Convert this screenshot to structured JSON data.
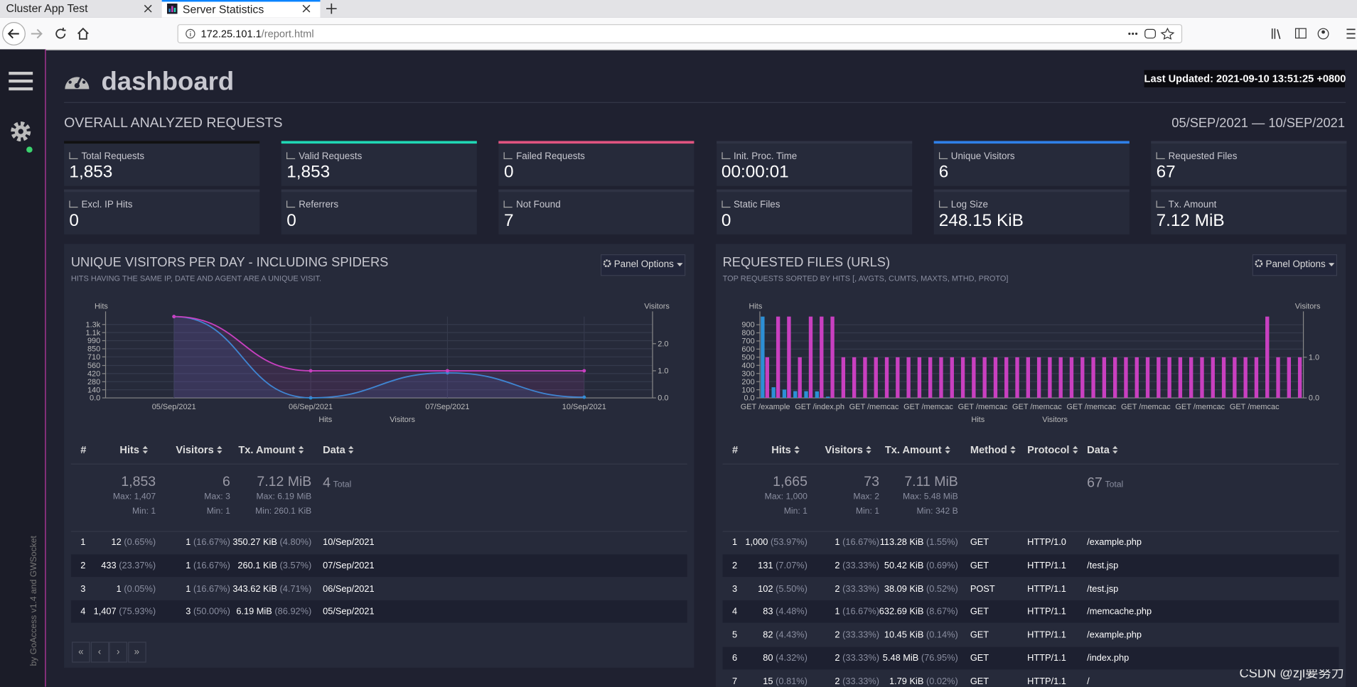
{
  "browser": {
    "tabs": [
      "Cluster App Test",
      "Server Statistics"
    ],
    "url_host": "172.25.101.1",
    "url_path": "/report.html"
  },
  "credit": "by GoAccess v1.4 and GWSocket",
  "header": {
    "title": "dashboard",
    "last_updated": "Last Updated: 2021-09-10 13:51:25 +0800"
  },
  "overall": {
    "title": "OVERALL ANALYZED REQUESTS",
    "date_range": "05/SEP/2021 — 10/SEP/2021",
    "metrics": [
      {
        "label": "Total Requests",
        "value": "1,853",
        "color": "#111111"
      },
      {
        "label": "Valid Requests",
        "value": "1,853",
        "color": "#20d7b4"
      },
      {
        "label": "Failed Requests",
        "value": "0",
        "color": "#e05480"
      },
      {
        "label": "Init. Proc. Time",
        "value": "00:00:01"
      },
      {
        "label": "Unique Visitors",
        "value": "6",
        "color": "#2f80e8"
      },
      {
        "label": "Requested Files",
        "value": "67"
      },
      {
        "label": "Excl. IP Hits",
        "value": "0"
      },
      {
        "label": "Referrers",
        "value": "0"
      },
      {
        "label": "Not Found",
        "value": "7"
      },
      {
        "label": "Static Files",
        "value": "0"
      },
      {
        "label": "Log Size",
        "value": "248.15 KiB"
      },
      {
        "label": "Tx. Amount",
        "value": "7.12 MiB"
      }
    ]
  },
  "panels": [
    {
      "title": "UNIQUE VISITORS PER DAY - INCLUDING SPIDERS",
      "subtitle": "HITS HAVING THE SAME IP, DATE AND AGENT ARE A UNIQUE VISIT.",
      "options": "Panel Options",
      "table": {
        "columns": [
          "#",
          "Hits",
          "Visitors",
          "Tx. Amount",
          "Data"
        ],
        "summary": {
          "hits": [
            "1,853",
            "Max: 1,407",
            "Min: 1"
          ],
          "visitors": [
            "6",
            "Max: 3",
            "Min: 1"
          ],
          "tx": [
            "7.12 MiB",
            "Max: 6.19 MiB",
            "Min: 260.1 KiB"
          ],
          "data": [
            "4",
            "Total"
          ]
        },
        "rows": [
          [
            "1",
            [
              "12",
              "(0.65%)"
            ],
            [
              "1",
              "(16.67%)"
            ],
            [
              "350.27 KiB",
              "(4.80%)"
            ],
            "10/Sep/2021"
          ],
          [
            "2",
            [
              "433",
              "(23.37%)"
            ],
            [
              "1",
              "(16.67%)"
            ],
            [
              "260.1 KiB",
              "(3.57%)"
            ],
            "07/Sep/2021"
          ],
          [
            "3",
            [
              "1",
              "(0.05%)"
            ],
            [
              "1",
              "(16.67%)"
            ],
            [
              "343.62 KiB",
              "(4.71%)"
            ],
            "06/Sep/2021"
          ],
          [
            "4",
            [
              "1,407",
              "(75.93%)"
            ],
            [
              "3",
              "(50.00%)"
            ],
            [
              "6.19 MiB",
              "(86.92%)"
            ],
            "05/Sep/2021"
          ]
        ]
      },
      "pager": [
        "«",
        "‹",
        "›",
        "»"
      ]
    },
    {
      "title": "REQUESTED FILES (URLS)",
      "subtitle": "TOP REQUESTS SORTED BY HITS [, AVGTS, CUMTS, MAXTS, MTHD, PROTO]",
      "options": "Panel Options",
      "table": {
        "columns": [
          "#",
          "Hits",
          "Visitors",
          "Tx. Amount",
          "Method",
          "Protocol",
          "Data"
        ],
        "summary": {
          "hits": [
            "1,665",
            "Max: 1,000",
            "Min: 1"
          ],
          "visitors": [
            "73",
            "Max: 2",
            "Min: 1"
          ],
          "tx": [
            "7.11 MiB",
            "Max: 5.48 MiB",
            "Min: 342 B"
          ],
          "data": [
            "67",
            "Total"
          ]
        },
        "rows": [
          [
            "1",
            [
              "1,000",
              "(53.97%)"
            ],
            [
              "1",
              "(16.67%)"
            ],
            [
              "113.28 KiB",
              "(1.55%)"
            ],
            "GET",
            "HTTP/1.0",
            "/example.php"
          ],
          [
            "2",
            [
              "131",
              "(7.07%)"
            ],
            [
              "2",
              "(33.33%)"
            ],
            [
              "50.42 KiB",
              "(0.69%)"
            ],
            "GET",
            "HTTP/1.1",
            "/test.jsp"
          ],
          [
            "3",
            [
              "102",
              "(5.50%)"
            ],
            [
              "2",
              "(33.33%)"
            ],
            [
              "38.09 KiB",
              "(0.52%)"
            ],
            "POST",
            "HTTP/1.1",
            "/test.jsp"
          ],
          [
            "4",
            [
              "83",
              "(4.48%)"
            ],
            [
              "1",
              "(16.67%)"
            ],
            [
              "632.69 KiB",
              "(8.67%)"
            ],
            "GET",
            "HTTP/1.1",
            "/memcache.php"
          ],
          [
            "5",
            [
              "82",
              "(4.43%)"
            ],
            [
              "2",
              "(33.33%)"
            ],
            [
              "10.45 KiB",
              "(0.14%)"
            ],
            "GET",
            "HTTP/1.1",
            "/example.php"
          ],
          [
            "6",
            [
              "80",
              "(4.32%)"
            ],
            [
              "2",
              "(33.33%)"
            ],
            [
              "5.48 MiB",
              "(76.95%)"
            ],
            "GET",
            "HTTP/1.1",
            "/index.php"
          ],
          [
            "7",
            [
              "15",
              "(0.81%)"
            ],
            [
              "2",
              "(33.33%)"
            ],
            [
              "1.79 KiB",
              "(0.02%)"
            ],
            "GET",
            "HTTP/1.1",
            "/"
          ]
        ]
      }
    }
  ],
  "chart_data": [
    {
      "type": "line",
      "y_label": "Hits",
      "y2_label": "Visitors",
      "categories": [
        "05/Sep/2021",
        "06/Sep/2021",
        "07/Sep/2021",
        "10/Sep/2021"
      ],
      "series": [
        {
          "name": "Hits",
          "color": "#2d8fd5",
          "values": [
            1407,
            1,
            433,
            12
          ]
        },
        {
          "name": "Visitors",
          "color": "#c840c0",
          "axis": "y2",
          "values": [
            3,
            1,
            1,
            1
          ]
        }
      ],
      "ylim": [
        0,
        1407
      ],
      "yticks": [
        {
          "value": 0,
          "label": "0.0"
        },
        140,
        280,
        420,
        560,
        710,
        850,
        990,
        {
          "value": 1130,
          "label": "1.1k"
        },
        {
          "value": 1270,
          "label": "1.3k"
        }
      ],
      "y2lim": [
        0,
        3
      ],
      "y2ticks": [
        {
          "value": 0,
          "label": "0.0"
        },
        {
          "value": 1,
          "label": "1.0"
        },
        {
          "value": 2,
          "label": "2.0"
        }
      ],
      "grid": true
    },
    {
      "type": "bar",
      "y_label": "Hits",
      "y2_label": "Visitors",
      "categories": [
        "GET /example",
        null,
        null,
        null,
        null,
        "GET /index.ph",
        null,
        null,
        null,
        null,
        "GET /memcac",
        null,
        null,
        null,
        null,
        "GET /memcac",
        null,
        null,
        null,
        null,
        "GET /memcac",
        null,
        null,
        null,
        null,
        "GET /memcac",
        null,
        null,
        null,
        null,
        "GET /memcac",
        null,
        null,
        null,
        null,
        "GET /memcac",
        null,
        null,
        null,
        null,
        "GET /memcac",
        null,
        null,
        null,
        null,
        "GET /memcac",
        null,
        null,
        null,
        null
      ],
      "series": [
        {
          "name": "Hits",
          "color": "#2d8fd5",
          "values": [
            1000,
            131,
            102,
            83,
            82,
            80,
            15,
            1,
            1,
            1,
            1,
            1,
            1,
            1,
            1,
            1,
            1,
            1,
            1,
            1,
            1,
            1,
            1,
            1,
            1,
            1,
            1,
            1,
            1,
            1,
            1,
            1,
            1,
            1,
            1,
            1,
            1,
            1,
            1,
            1,
            1,
            1,
            1,
            1,
            1,
            1,
            1,
            1,
            1,
            1
          ]
        },
        {
          "name": "Visitors",
          "color": "#c840c0",
          "axis": "y2",
          "values": [
            1,
            2,
            2,
            1,
            2,
            2,
            2,
            1,
            1,
            1,
            1,
            1,
            1,
            1,
            1,
            1,
            1,
            1,
            1,
            1,
            1,
            1,
            1,
            1,
            1,
            1,
            1,
            1,
            1,
            1,
            1,
            1,
            1,
            1,
            1,
            1,
            1,
            1,
            1,
            1,
            1,
            1,
            1,
            1,
            1,
            1,
            2,
            1,
            1,
            1
          ]
        }
      ],
      "ylim": [
        0,
        1000
      ],
      "yticks": [
        {
          "value": 0,
          "label": "0.0"
        },
        100,
        200,
        300,
        400,
        500,
        600,
        700,
        800,
        900
      ],
      "y2lim": [
        0,
        2
      ],
      "y2ticks": [
        {
          "value": 0,
          "label": "0.0"
        },
        {
          "value": 1,
          "label": "1.0"
        }
      ],
      "grid": true
    }
  ],
  "watermark": "CSDN @zjl要努力"
}
